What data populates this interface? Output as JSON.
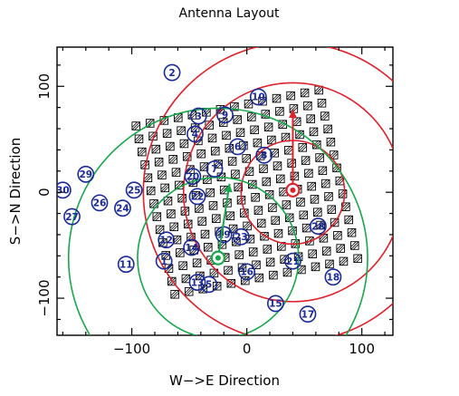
{
  "chart_data": {
    "type": "scatter",
    "title": "Antenna Layout",
    "xlabel": "W−>E Direction",
    "ylabel": "S−>N Direction",
    "xlim": [
      -165,
      127
    ],
    "ylim": [
      -135,
      137
    ],
    "xticks": [
      -100,
      0,
      100
    ],
    "yticks": [
      -100,
      0,
      100
    ],
    "grid": false,
    "legend": "none",
    "grid_array": {
      "description_values": "Rotated square grid of small hatched antenna pads",
      "origin": [
        0,
        0
      ],
      "spacing": 12.5,
      "rotation_deg": 12,
      "bounds_u": [
        -6.5,
        6.5
      ],
      "bounds_v": [
        -6.5,
        6.5
      ],
      "color": "#000000"
    },
    "antennas": [
      {
        "label": "1",
        "x": -72,
        "y": -65
      },
      {
        "label": "2",
        "x": -65,
        "y": 113
      },
      {
        "label": "3",
        "x": -42,
        "y": 72
      },
      {
        "label": "4",
        "x": -45,
        "y": 55
      },
      {
        "label": "5",
        "x": -33,
        "y": -87
      },
      {
        "label": "6",
        "x": -8,
        "y": 43
      },
      {
        "label": "7",
        "x": -28,
        "y": 22
      },
      {
        "label": "8",
        "x": 15,
        "y": 35
      },
      {
        "label": "9",
        "x": -19,
        "y": 73
      },
      {
        "label": "10",
        "x": 10,
        "y": 90
      },
      {
        "label": "11",
        "x": -105,
        "y": -68
      },
      {
        "label": "12",
        "x": -70,
        "y": -45
      },
      {
        "label": "13",
        "x": -43,
        "y": -85
      },
      {
        "label": "14",
        "x": -48,
        "y": -52
      },
      {
        "label": "15",
        "x": 25,
        "y": -105
      },
      {
        "label": "16",
        "x": 0,
        "y": -75
      },
      {
        "label": "17",
        "x": 53,
        "y": -115
      },
      {
        "label": "18",
        "x": 75,
        "y": -80
      },
      {
        "label": "19",
        "x": -20,
        "y": -40
      },
      {
        "label": "20",
        "x": -47,
        "y": 15
      },
      {
        "label": "21",
        "x": 40,
        "y": -65
      },
      {
        "label": "22",
        "x": -43,
        "y": -4
      },
      {
        "label": "23",
        "x": -5,
        "y": -42
      },
      {
        "label": "24",
        "x": -108,
        "y": -15
      },
      {
        "label": "25",
        "x": -98,
        "y": 2
      },
      {
        "label": "26",
        "x": -128,
        "y": -10
      },
      {
        "label": "27",
        "x": -152,
        "y": -23
      },
      {
        "label": "28",
        "x": 62,
        "y": -32
      },
      {
        "label": "29",
        "x": -140,
        "y": 17
      },
      {
        "label": "30",
        "x": -160,
        "y": 2
      }
    ],
    "red_circles": {
      "color": "#e0202a",
      "center": [
        40,
        0
      ],
      "radii": [
        45,
        95,
        130
      ]
    },
    "green_circles": {
      "color": "#17a84a",
      "center": [
        -25,
        -62
      ],
      "radii": [
        70,
        130
      ]
    },
    "red_marker": {
      "x": 40,
      "y": 2
    },
    "green_marker": {
      "x": -25,
      "y": -62
    },
    "red_arrow": {
      "x1": 40,
      "y1": 2,
      "x2": 40,
      "y2": 78
    },
    "green_arrow": {
      "x1": -25,
      "y1": -62,
      "x2": -15,
      "y2": 8
    },
    "colors": {
      "antenna_label": "#1a2a9a",
      "axis": "#000000"
    }
  }
}
